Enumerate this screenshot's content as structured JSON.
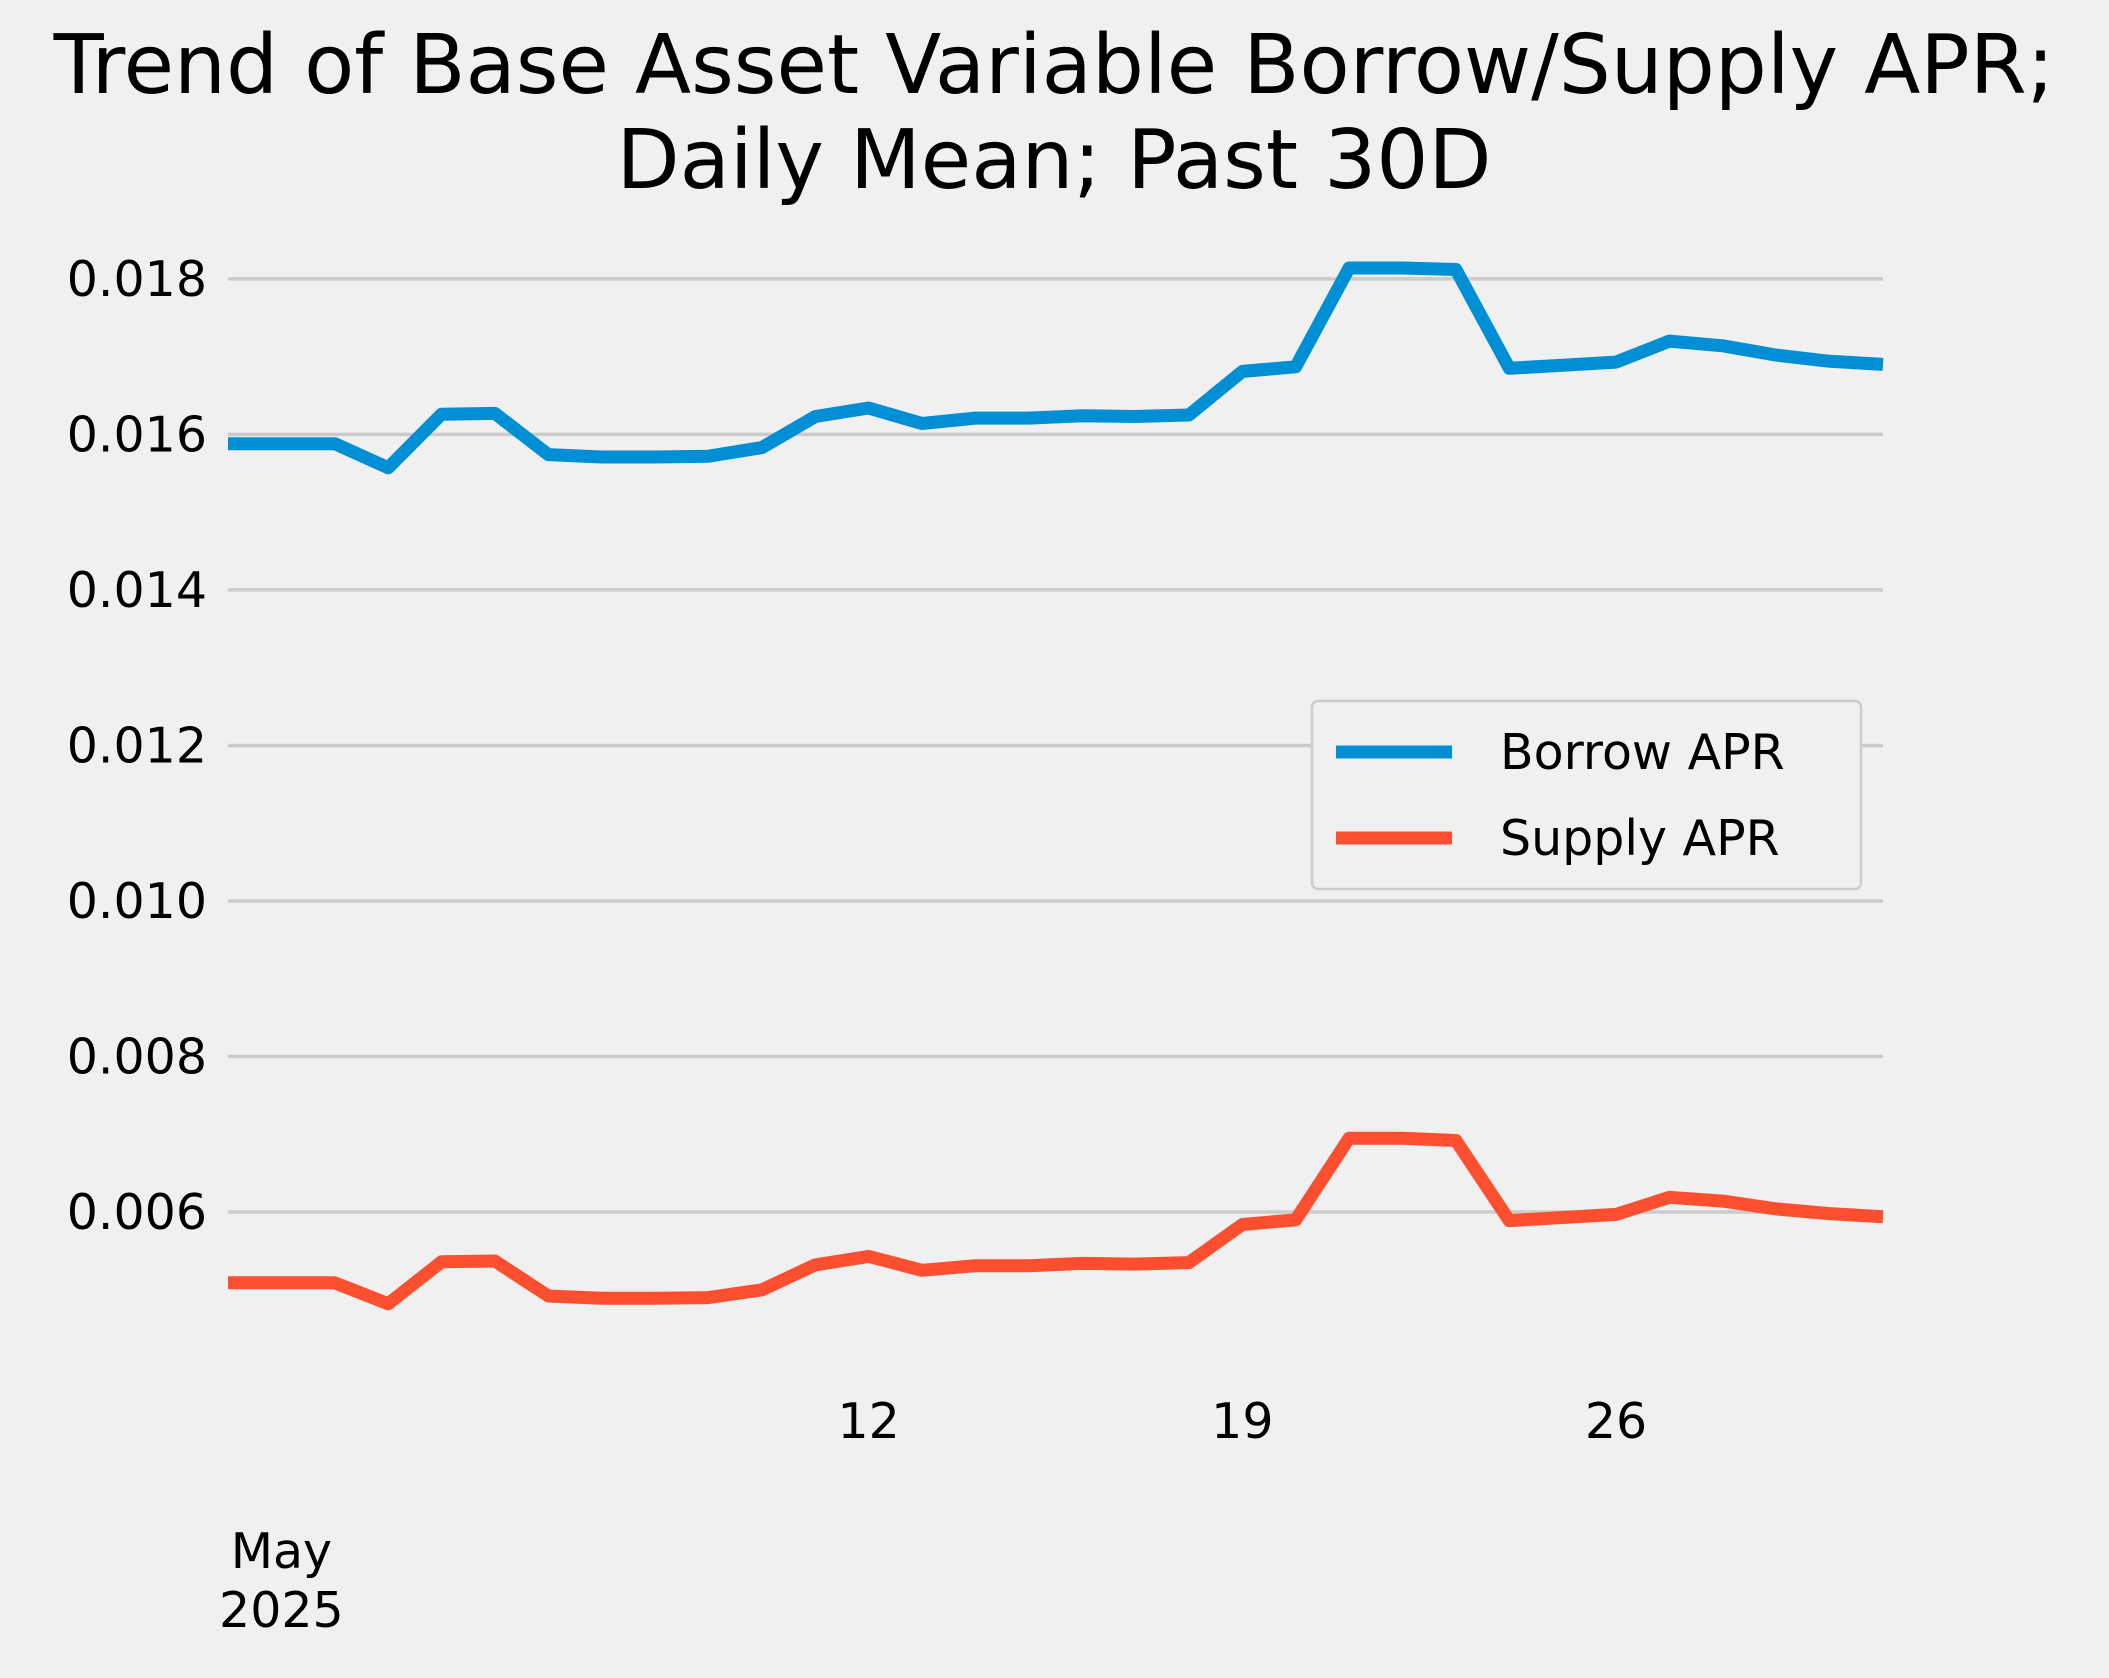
{
  "chart_data": {
    "type": "line",
    "title_lines": [
      "Trend of Base Asset Variable Borrow/Supply APR;",
      "Daily Mean; Past 30D"
    ],
    "xlabel": "",
    "ylabel": "",
    "x": [
      "2025-04-30",
      "2025-05-01",
      "2025-05-02",
      "2025-05-03",
      "2025-05-04",
      "2025-05-05",
      "2025-05-06",
      "2025-05-07",
      "2025-05-08",
      "2025-05-09",
      "2025-05-10",
      "2025-05-11",
      "2025-05-12",
      "2025-05-13",
      "2025-05-14",
      "2025-05-15",
      "2025-05-16",
      "2025-05-17",
      "2025-05-18",
      "2025-05-19",
      "2025-05-20",
      "2025-05-21",
      "2025-05-22",
      "2025-05-23",
      "2025-05-24",
      "2025-05-25",
      "2025-05-26",
      "2025-05-27",
      "2025-05-28",
      "2025-05-29",
      "2025-05-30",
      "2025-05-31"
    ],
    "series": [
      {
        "name": "Borrow APR",
        "color": "#008fd5",
        "values": [
          0.01588,
          0.01588,
          0.01588,
          0.01557,
          0.01626,
          0.01627,
          0.01574,
          0.01571,
          0.01571,
          0.01572,
          0.01583,
          0.01623,
          0.01634,
          0.01614,
          0.01621,
          0.01621,
          0.01624,
          0.01623,
          0.01625,
          0.01681,
          0.01687,
          0.01814,
          0.01814,
          0.01812,
          0.01685,
          0.01689,
          0.01693,
          0.0172,
          0.01714,
          0.01702,
          0.01694,
          0.0169
        ]
      },
      {
        "name": "Supply APR",
        "color": "#fc4f30",
        "values": [
          0.00509,
          0.00509,
          0.00509,
          0.00482,
          0.00536,
          0.00537,
          0.00492,
          0.00489,
          0.00489,
          0.0049,
          0.005,
          0.00532,
          0.00543,
          0.00525,
          0.00531,
          0.00531,
          0.00534,
          0.00533,
          0.00535,
          0.00584,
          0.0059,
          0.00695,
          0.00695,
          0.00692,
          0.00589,
          0.00593,
          0.00597,
          0.00619,
          0.00614,
          0.00604,
          0.00598,
          0.00594
        ]
      }
    ],
    "ylim": [
      0.0042,
      0.0185
    ],
    "yticks": [
      0.006,
      0.008,
      0.01,
      0.012,
      0.014,
      0.016,
      0.018
    ],
    "ytick_labels": [
      "0.006",
      "0.008",
      "0.010",
      "0.012",
      "0.014",
      "0.016",
      "0.018"
    ],
    "xticks": [
      {
        "date": "2025-05-12",
        "label": "12"
      },
      {
        "date": "2025-05-19",
        "label": "19"
      },
      {
        "date": "2025-05-26",
        "label": "26"
      }
    ],
    "x_major_label": {
      "date": "2025-05-01",
      "lines": [
        "May",
        "2025"
      ]
    },
    "grid": "y",
    "legend_position": "center-right",
    "background": "#f0f0f0"
  }
}
